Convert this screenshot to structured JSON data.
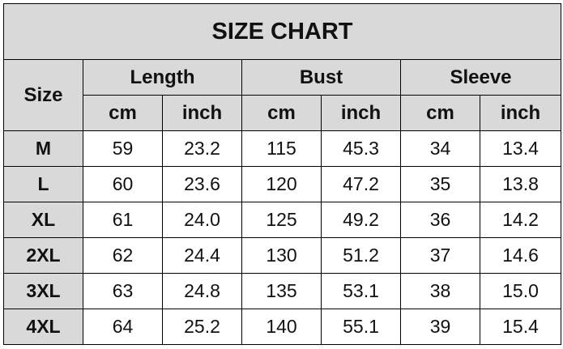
{
  "title": "SIZE CHART",
  "headers": {
    "size": "Size",
    "groups": [
      "Length",
      "Bust",
      "Sleeve"
    ],
    "units": [
      "cm",
      "inch",
      "cm",
      "inch",
      "cm",
      "inch"
    ]
  },
  "rows": [
    [
      "M",
      "59",
      "23.2",
      "115",
      "45.3",
      "34",
      "13.4"
    ],
    [
      "L",
      "60",
      "23.6",
      "120",
      "47.2",
      "35",
      "13.8"
    ],
    [
      "XL",
      "61",
      "24.0",
      "125",
      "49.2",
      "36",
      "14.2"
    ],
    [
      "2XL",
      "62",
      "24.4",
      "130",
      "51.2",
      "37",
      "14.6"
    ],
    [
      "3XL",
      "63",
      "24.8",
      "135",
      "53.1",
      "38",
      "15.0"
    ],
    [
      "4XL",
      "64",
      "25.2",
      "140",
      "55.1",
      "39",
      "15.4"
    ]
  ],
  "colors": {
    "header_bg": "#d9d9d9",
    "border": "#000000"
  }
}
